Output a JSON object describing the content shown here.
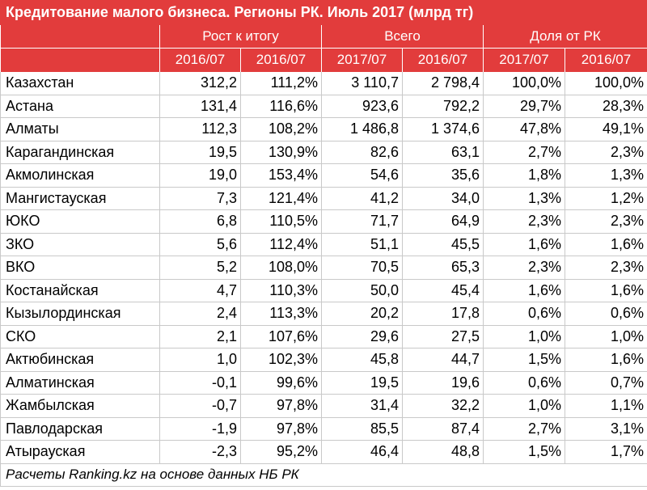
{
  "title": "Кредитование малого бизнеса. Регионы РК. Июль 2017 (млрд тг)",
  "group_headers": [
    "Рост к итогу",
    "Всего",
    "Доля от РК"
  ],
  "sub_headers": [
    "2016/07",
    "2016/07",
    "2017/07",
    "2016/07",
    "2017/07",
    "2016/07"
  ],
  "rows": [
    [
      "Казахстан",
      "312,2",
      "111,2%",
      "3 110,7",
      "2 798,4",
      "100,0%",
      "100,0%"
    ],
    [
      "Астана",
      "131,4",
      "116,6%",
      "923,6",
      "792,2",
      "29,7%",
      "28,3%"
    ],
    [
      "Алматы",
      "112,3",
      "108,2%",
      "1 486,8",
      "1 374,6",
      "47,8%",
      "49,1%"
    ],
    [
      "Карагандинская",
      "19,5",
      "130,9%",
      "82,6",
      "63,1",
      "2,7%",
      "2,3%"
    ],
    [
      "Акмолинская",
      "19,0",
      "153,4%",
      "54,6",
      "35,6",
      "1,8%",
      "1,3%"
    ],
    [
      "Мангистауская",
      "7,3",
      "121,4%",
      "41,2",
      "34,0",
      "1,3%",
      "1,2%"
    ],
    [
      "ЮКО",
      "6,8",
      "110,5%",
      "71,7",
      "64,9",
      "2,3%",
      "2,3%"
    ],
    [
      "ЗКО",
      "5,6",
      "112,4%",
      "51,1",
      "45,5",
      "1,6%",
      "1,6%"
    ],
    [
      "ВКО",
      "5,2",
      "108,0%",
      "70,5",
      "65,3",
      "2,3%",
      "2,3%"
    ],
    [
      "Костанайская",
      "4,7",
      "110,3%",
      "50,0",
      "45,4",
      "1,6%",
      "1,6%"
    ],
    [
      "Кызылординская",
      "2,4",
      "113,3%",
      "20,2",
      "17,8",
      "0,6%",
      "0,6%"
    ],
    [
      "СКО",
      "2,1",
      "107,6%",
      "29,6",
      "27,5",
      "1,0%",
      "1,0%"
    ],
    [
      "Актюбинская",
      "1,0",
      "102,3%",
      "45,8",
      "44,7",
      "1,5%",
      "1,6%"
    ],
    [
      "Алматинская",
      "-0,1",
      "99,6%",
      "19,5",
      "19,6",
      "0,6%",
      "0,7%"
    ],
    [
      "Жамбылская",
      "-0,7",
      "97,8%",
      "31,4",
      "32,2",
      "1,0%",
      "1,1%"
    ],
    [
      "Павлодарская",
      "-1,9",
      "97,8%",
      "85,5",
      "87,4",
      "2,7%",
      "3,1%"
    ],
    [
      "Атырауская",
      "-2,3",
      "95,2%",
      "46,4",
      "48,8",
      "1,5%",
      "1,7%"
    ]
  ],
  "footer": "Расчеты Ranking.kz на основе данных НБ РК",
  "colors": {
    "header_bg": "#e23c3c",
    "header_text": "#ffffff",
    "grid": "#c9c9c9"
  }
}
